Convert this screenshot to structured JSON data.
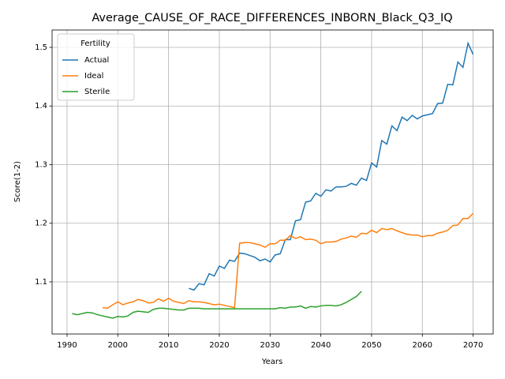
{
  "chart_data": {
    "type": "line",
    "title": "Average_CAUSE_OF_RACE_DIFFERENCES_INBORN_Black_Q3_IQ",
    "xlabel": "Years",
    "ylabel": "Score(1-2)",
    "legend_title": "Fertility",
    "legend": "upper left",
    "grid": true,
    "x": [
      1991,
      1992,
      1993,
      1994,
      1995,
      1996,
      1997,
      1998,
      1999,
      2000,
      2001,
      2002,
      2003,
      2004,
      2005,
      2006,
      2007,
      2008,
      2009,
      2010,
      2011,
      2012,
      2013,
      2014,
      2015,
      2016,
      2017,
      2018,
      2019,
      2020,
      2021,
      2022,
      2023,
      2024,
      2025,
      2026,
      2027,
      2028,
      2029,
      2030,
      2031,
      2032,
      2033,
      2034,
      2035,
      2036,
      2037,
      2038,
      2039,
      2040,
      2041,
      2042,
      2043,
      2044,
      2045,
      2046,
      2047,
      2048,
      2049,
      2050,
      2051,
      2052,
      2053,
      2054,
      2055,
      2056,
      2057,
      2058,
      2059,
      2060,
      2061,
      2062,
      2063,
      2064,
      2065,
      2066,
      2067,
      2068,
      2069,
      2070
    ],
    "series": [
      {
        "name": "Actual",
        "color": "#1f77b4",
        "values": [
          null,
          null,
          null,
          null,
          null,
          null,
          null,
          null,
          null,
          null,
          null,
          null,
          null,
          null,
          null,
          null,
          null,
          null,
          null,
          null,
          null,
          null,
          null,
          1.089,
          1.086,
          1.097,
          1.095,
          1.114,
          1.11,
          1.127,
          1.123,
          1.137,
          1.135,
          1.149,
          1.148,
          1.145,
          1.142,
          1.136,
          1.139,
          1.134,
          1.146,
          1.148,
          1.172,
          1.172,
          1.204,
          1.206,
          1.236,
          1.238,
          1.251,
          1.246,
          1.257,
          1.255,
          1.262,
          1.262,
          1.263,
          1.268,
          1.265,
          1.277,
          1.273,
          1.303,
          1.296,
          1.341,
          1.335,
          1.366,
          1.358,
          1.381,
          1.375,
          1.384,
          1.378,
          1.383,
          1.385,
          1.387,
          1.404,
          1.405,
          1.437,
          1.436,
          1.475,
          1.466,
          1.507,
          1.488
        ]
      },
      {
        "name": "Ideal",
        "color": "#ff7f0e",
        "values": [
          null,
          null,
          null,
          null,
          null,
          null,
          1.056,
          1.055,
          1.061,
          1.066,
          1.061,
          1.064,
          1.066,
          1.07,
          1.068,
          1.064,
          1.065,
          1.071,
          1.067,
          1.072,
          1.067,
          1.065,
          1.063,
          1.068,
          1.066,
          1.066,
          1.065,
          1.063,
          1.061,
          1.062,
          1.06,
          1.058,
          1.056,
          1.166,
          1.167,
          1.167,
          1.165,
          1.163,
          1.159,
          1.165,
          1.165,
          1.171,
          1.171,
          1.179,
          1.174,
          1.177,
          1.172,
          1.173,
          1.171,
          1.165,
          1.168,
          1.168,
          1.169,
          1.173,
          1.175,
          1.178,
          1.176,
          1.183,
          1.182,
          1.188,
          1.184,
          1.191,
          1.189,
          1.191,
          1.187,
          1.184,
          1.181,
          1.18,
          1.18,
          1.177,
          1.179,
          1.179,
          1.183,
          1.185,
          1.188,
          1.196,
          1.197,
          1.208,
          1.208,
          1.217
        ]
      },
      {
        "name": "Sterile",
        "color": "#2ca02c",
        "values": [
          1.046,
          1.044,
          1.046,
          1.048,
          1.047,
          1.044,
          1.042,
          1.04,
          1.038,
          1.041,
          1.04,
          1.042,
          1.048,
          1.05,
          1.049,
          1.048,
          1.053,
          1.055,
          1.055,
          1.054,
          1.053,
          1.052,
          1.052,
          1.055,
          1.055,
          1.055,
          1.054,
          1.054,
          1.054,
          1.054,
          1.054,
          1.054,
          1.054,
          1.054,
          1.054,
          1.054,
          1.054,
          1.054,
          1.054,
          1.054,
          1.054,
          1.056,
          1.055,
          1.057,
          1.057,
          1.059,
          1.055,
          1.058,
          1.057,
          1.059,
          1.06,
          1.06,
          1.059,
          1.061,
          1.065,
          1.07,
          1.075,
          1.084,
          null,
          null,
          null,
          null,
          null,
          null,
          null,
          null,
          null,
          null,
          null,
          null,
          null,
          null,
          null,
          null,
          null,
          null,
          null,
          null,
          null,
          null
        ]
      }
    ],
    "xlim": [
      1987.05,
      2073.95
    ],
    "xticks": [
      1990,
      2000,
      2010,
      2020,
      2030,
      2040,
      2050,
      2060,
      2070
    ],
    "ylim": [
      1.0111,
      1.5296
    ],
    "yticks": [
      1.1,
      1.2,
      1.3,
      1.4,
      1.5
    ]
  }
}
